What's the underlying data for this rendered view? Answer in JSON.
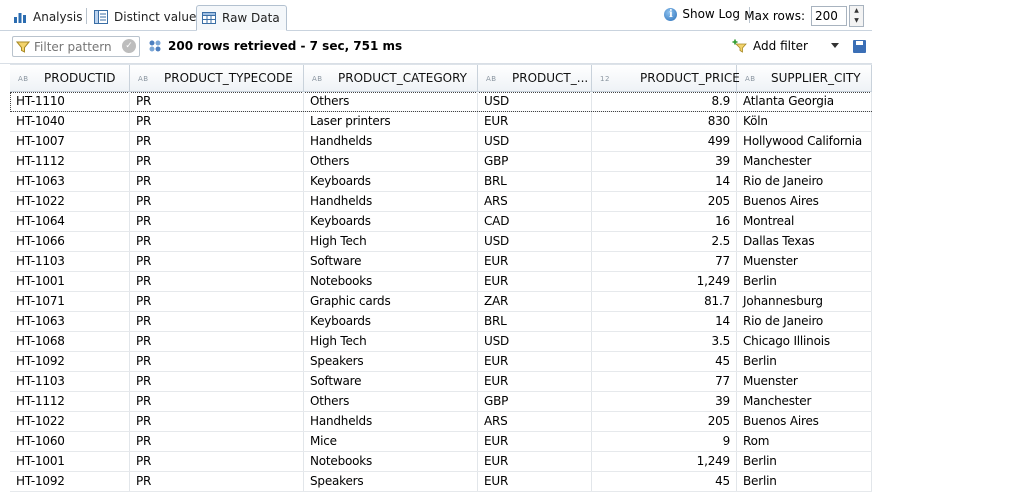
{
  "tabs": [
    {
      "label": "Analysis",
      "icon": "bar-chart-icon"
    },
    {
      "label": "Distinct values",
      "icon": "distinct-values-icon"
    },
    {
      "label": "Raw Data",
      "icon": "table-icon",
      "active": true
    }
  ],
  "header_right": {
    "show_log_label": "Show Log",
    "max_rows_label": "Max rows:",
    "max_rows_value": "200"
  },
  "toolbar": {
    "filter_placeholder": "Filter pattern",
    "status": "200 rows retrieved - 7 sec, 751 ms",
    "add_filter_label": "Add filter"
  },
  "columns": [
    {
      "type": "AB",
      "label": "PRODUCTID"
    },
    {
      "type": "AB",
      "label": "PRODUCT_TYPECODE"
    },
    {
      "type": "AB",
      "label": "PRODUCT_CATEGORY"
    },
    {
      "type": "AB",
      "label": "PRODUCT_..."
    },
    {
      "type": "12",
      "label": "PRODUCT_PRICE"
    },
    {
      "type": "AB",
      "label": "SUPPLIER_CITY"
    }
  ],
  "rows": [
    [
      "HT-1110",
      "PR",
      "Others",
      "USD",
      "8.9",
      "Atlanta Georgia"
    ],
    [
      "HT-1040",
      "PR",
      "Laser printers",
      "EUR",
      "830",
      "Köln"
    ],
    [
      "HT-1007",
      "PR",
      "Handhelds",
      "USD",
      "499",
      "Hollywood California"
    ],
    [
      "HT-1112",
      "PR",
      "Others",
      "GBP",
      "39",
      "Manchester"
    ],
    [
      "HT-1063",
      "PR",
      "Keyboards",
      "BRL",
      "14",
      "Rio de Janeiro"
    ],
    [
      "HT-1022",
      "PR",
      "Handhelds",
      "ARS",
      "205",
      "Buenos Aires"
    ],
    [
      "HT-1064",
      "PR",
      "Keyboards",
      "CAD",
      "16",
      "Montreal"
    ],
    [
      "HT-1066",
      "PR",
      "High Tech",
      "USD",
      "2.5",
      "Dallas Texas"
    ],
    [
      "HT-1103",
      "PR",
      "Software",
      "EUR",
      "77",
      "Muenster"
    ],
    [
      "HT-1001",
      "PR",
      "Notebooks",
      "EUR",
      "1,249",
      "Berlin"
    ],
    [
      "HT-1071",
      "PR",
      "Graphic cards",
      "ZAR",
      "81.7",
      "Johannesburg"
    ],
    [
      "HT-1063",
      "PR",
      "Keyboards",
      "BRL",
      "14",
      "Rio de Janeiro"
    ],
    [
      "HT-1068",
      "PR",
      "High Tech",
      "USD",
      "3.5",
      "Chicago Illinois"
    ],
    [
      "HT-1092",
      "PR",
      "Speakers",
      "EUR",
      "45",
      "Berlin"
    ],
    [
      "HT-1103",
      "PR",
      "Software",
      "EUR",
      "77",
      "Muenster"
    ],
    [
      "HT-1112",
      "PR",
      "Others",
      "GBP",
      "39",
      "Manchester"
    ],
    [
      "HT-1022",
      "PR",
      "Handhelds",
      "ARS",
      "205",
      "Buenos Aires"
    ],
    [
      "HT-1060",
      "PR",
      "Mice",
      "EUR",
      "9",
      "Rom"
    ],
    [
      "HT-1001",
      "PR",
      "Notebooks",
      "EUR",
      "1,249",
      "Berlin"
    ],
    [
      "HT-1092",
      "PR",
      "Speakers",
      "EUR",
      "45",
      "Berlin"
    ]
  ]
}
